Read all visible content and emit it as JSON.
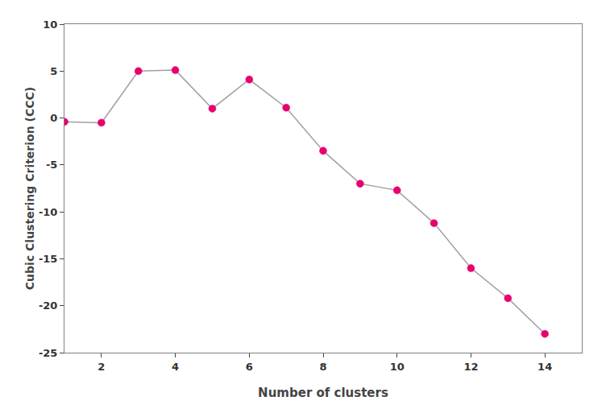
{
  "chart_data": {
    "type": "line",
    "xlabel": "Number of clusters",
    "ylabel": "Cubic Clustering Criterion (CCC)",
    "x": [
      1,
      2,
      3,
      4,
      5,
      6,
      7,
      8,
      9,
      10,
      11,
      12,
      13,
      14
    ],
    "series": [
      {
        "type": "line",
        "color": "#a0a0a0",
        "line_style": "solid",
        "values": [
          -0.4,
          -0.5,
          5.0,
          5.1,
          1.0,
          4.1,
          1.1,
          -3.5,
          -7.0,
          -7.7,
          -11.2,
          -16.0,
          -19.2,
          -23.0
        ]
      },
      {
        "type": "scatter",
        "color": "#e8006e",
        "marker": "circle",
        "values": [
          -0.4,
          -0.5,
          5.0,
          5.1,
          1.0,
          4.1,
          1.1,
          -3.5,
          -7.0,
          -7.7,
          -11.2,
          -16.0,
          -19.2,
          -23.0
        ]
      }
    ],
    "xlim": [
      1,
      15
    ],
    "ylim": [
      -25,
      10
    ],
    "xticks": [
      2,
      4,
      6,
      8,
      10,
      12,
      14
    ],
    "yticks": [
      -25,
      -20,
      -15,
      -10,
      -5,
      0,
      5,
      10
    ],
    "grid": false
  }
}
